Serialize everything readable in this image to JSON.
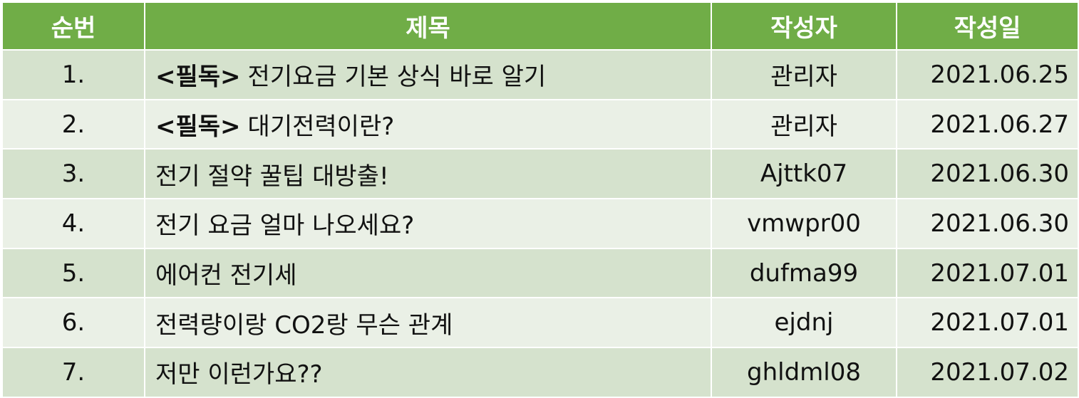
{
  "table": {
    "headers": {
      "number": "순번",
      "title": "제목",
      "author": "작성자",
      "date": "작성일"
    },
    "rows": [
      {
        "number": "1.",
        "tag": "<필독>",
        "title": "전기요금 기본 상식 바로 알기",
        "author": "관리자",
        "date": "2021.06.25"
      },
      {
        "number": "2.",
        "tag": "<필독>",
        "title": "대기전력이란?",
        "author": "관리자",
        "date": "2021.06.27"
      },
      {
        "number": "3.",
        "tag": "",
        "title": "전기 절약 꿀팁 대방출!",
        "author": "Ajttk07",
        "date": "2021.06.30"
      },
      {
        "number": "4.",
        "tag": "",
        "title": "전기 요금 얼마 나오세요?",
        "author": "vmwpr00",
        "date": "2021.06.30"
      },
      {
        "number": "5.",
        "tag": "",
        "title": "에어컨 전기세",
        "author": "dufma99",
        "date": "2021.07.01"
      },
      {
        "number": "6.",
        "tag": "",
        "title": "전력량이랑 CO2랑 무슨 관계",
        "author": "ejdnj",
        "date": "2021.07.01"
      },
      {
        "number": "7.",
        "tag": "",
        "title": "저만 이런가요??",
        "author": "ghldml08",
        "date": "2021.07.02"
      }
    ]
  },
  "colors": {
    "header_bg": "#70ad47",
    "row_odd_bg": "#d5e2cd",
    "row_even_bg": "#eaf0e6",
    "header_text": "#ffffff"
  }
}
